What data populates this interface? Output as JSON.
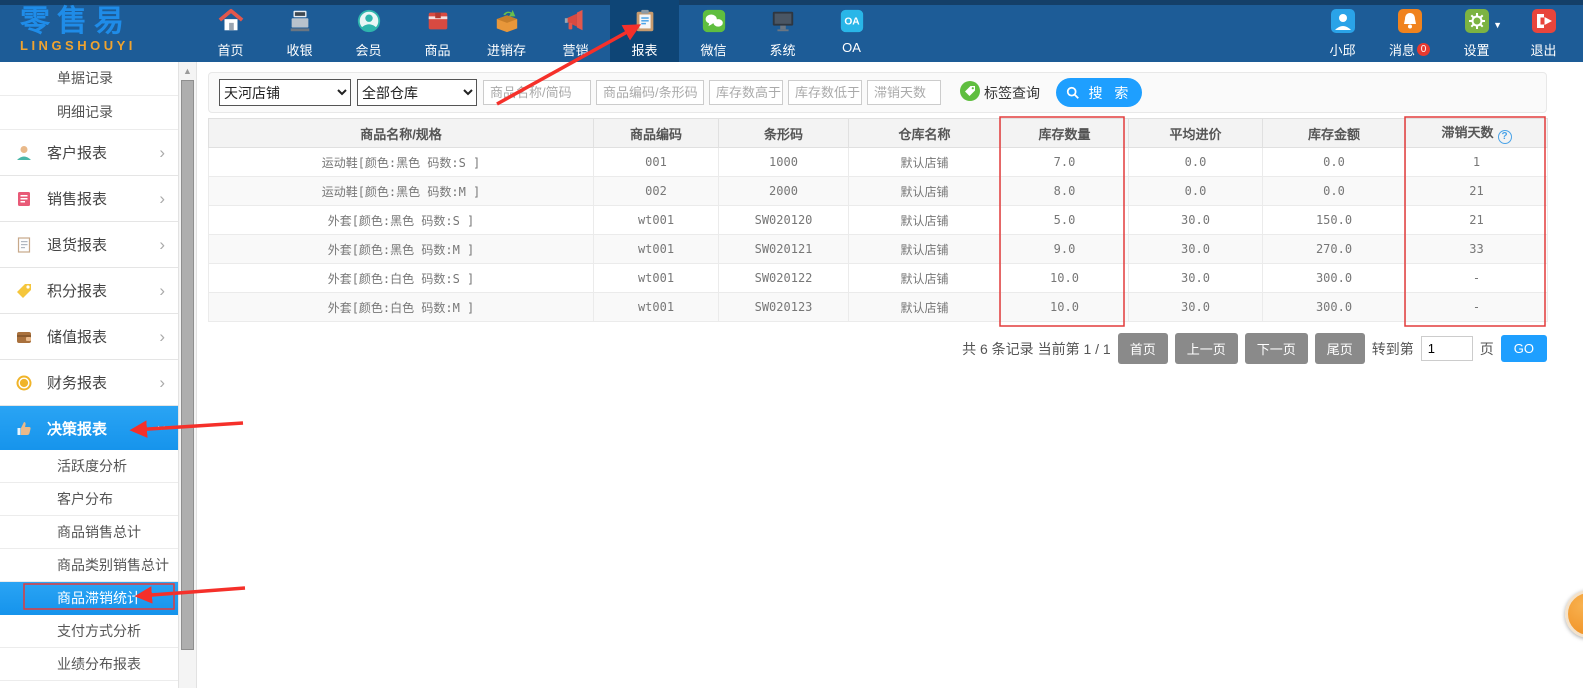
{
  "topbar": {
    "logo": {
      "title": "零售易",
      "subtitle": "LINGSHOUYI"
    },
    "tabs": [
      {
        "label": "首页"
      },
      {
        "label": "收银"
      },
      {
        "label": "会员"
      },
      {
        "label": "商品"
      },
      {
        "label": "进销存"
      },
      {
        "label": "营销"
      },
      {
        "label": "报表",
        "active": true
      },
      {
        "label": "微信"
      },
      {
        "label": "系统"
      },
      {
        "label": "OA"
      }
    ],
    "right": [
      {
        "label": "小邱"
      },
      {
        "label": "消息",
        "badge": "0"
      },
      {
        "label": "设置"
      },
      {
        "label": "退出"
      }
    ]
  },
  "sidebar": {
    "simple_items": [
      {
        "label": "单据记录"
      },
      {
        "label": "明细记录"
      }
    ],
    "groups": [
      {
        "label": "客户报表"
      },
      {
        "label": "销售报表"
      },
      {
        "label": "退货报表"
      },
      {
        "label": "积分报表"
      },
      {
        "label": "储值报表"
      },
      {
        "label": "财务报表"
      },
      {
        "label": "决策报表",
        "active": true
      }
    ],
    "sub_items": [
      {
        "label": "活跃度分析"
      },
      {
        "label": "客户分布"
      },
      {
        "label": "商品销售总计"
      },
      {
        "label": "商品类别销售总计"
      },
      {
        "label": "商品滞销统计",
        "active": true
      },
      {
        "label": "支付方式分析"
      },
      {
        "label": "业绩分布报表"
      }
    ]
  },
  "filters": {
    "store_select": "天河店铺",
    "warehouse_select": "全部仓库",
    "inputs": [
      {
        "placeholder": "商品名称/简码"
      },
      {
        "placeholder": "商品编码/条形码"
      },
      {
        "placeholder": "库存数高于"
      },
      {
        "placeholder": "库存数低于"
      },
      {
        "placeholder": "滞销天数"
      }
    ],
    "tag_query_label": "标签查询",
    "search_label": "搜 索"
  },
  "table": {
    "columns": [
      "商品名称/规格",
      "商品编码",
      "条形码",
      "仓库名称",
      "库存数量",
      "平均进价",
      "库存金额",
      "滞销天数"
    ],
    "help_column_index": 7,
    "rows": [
      [
        "运动鞋[颜色:黑色 码数:S ]",
        "001",
        "1000",
        "默认店铺",
        "7.0",
        "0.0",
        "0.0",
        "1"
      ],
      [
        "运动鞋[颜色:黑色 码数:M ]",
        "002",
        "2000",
        "默认店铺",
        "8.0",
        "0.0",
        "0.0",
        "21"
      ],
      [
        "外套[颜色:黑色 码数:S ]",
        "wt001",
        "SW020120",
        "默认店铺",
        "5.0",
        "30.0",
        "150.0",
        "21"
      ],
      [
        "外套[颜色:黑色 码数:M ]",
        "wt001",
        "SW020121",
        "默认店铺",
        "9.0",
        "30.0",
        "270.0",
        "33"
      ],
      [
        "外套[颜色:白色 码数:S ]",
        "wt001",
        "SW020122",
        "默认店铺",
        "10.0",
        "30.0",
        "300.0",
        "-"
      ],
      [
        "外套[颜色:白色 码数:M ]",
        "wt001",
        "SW020123",
        "默认店铺",
        "10.0",
        "30.0",
        "300.0",
        "-"
      ]
    ]
  },
  "pagination": {
    "summary": "共 6 条记录 当前第 1 / 1",
    "buttons": [
      "首页",
      "上一页",
      "下一页",
      "尾页"
    ],
    "goto_prefix": "转到第",
    "goto_value": "1",
    "goto_suffix": "页",
    "go_label": "GO"
  },
  "colors": {
    "topbar_blue": "#1d5c97",
    "accent_blue": "#1e9fff",
    "annotation_red": "#f5302a"
  }
}
